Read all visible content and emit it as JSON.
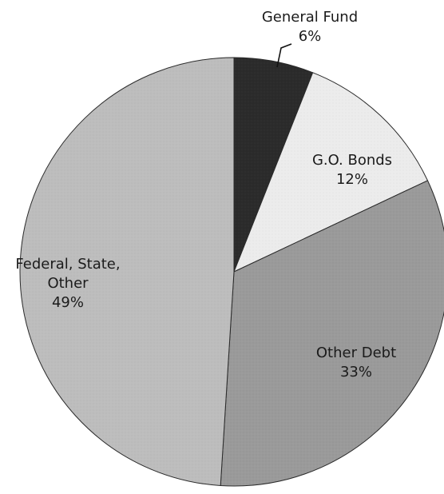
{
  "chart_data": {
    "type": "pie",
    "start_angle_deg": 0,
    "direction": "clockwise",
    "slices": [
      {
        "label_lines": [
          "General Fund",
          "6%"
        ],
        "value": 6,
        "color": "#2b2b2b"
      },
      {
        "label_lines": [
          "G.O. Bonds",
          "12%"
        ],
        "value": 12,
        "color": "#ececec"
      },
      {
        "label_lines": [
          "Other Debt",
          "33%"
        ],
        "value": 33,
        "color": "#9a9a9a"
      },
      {
        "label_lines": [
          "Federal, State,",
          "Other",
          "49%"
        ],
        "value": 49,
        "color": "#bdbdbd"
      }
    ]
  }
}
